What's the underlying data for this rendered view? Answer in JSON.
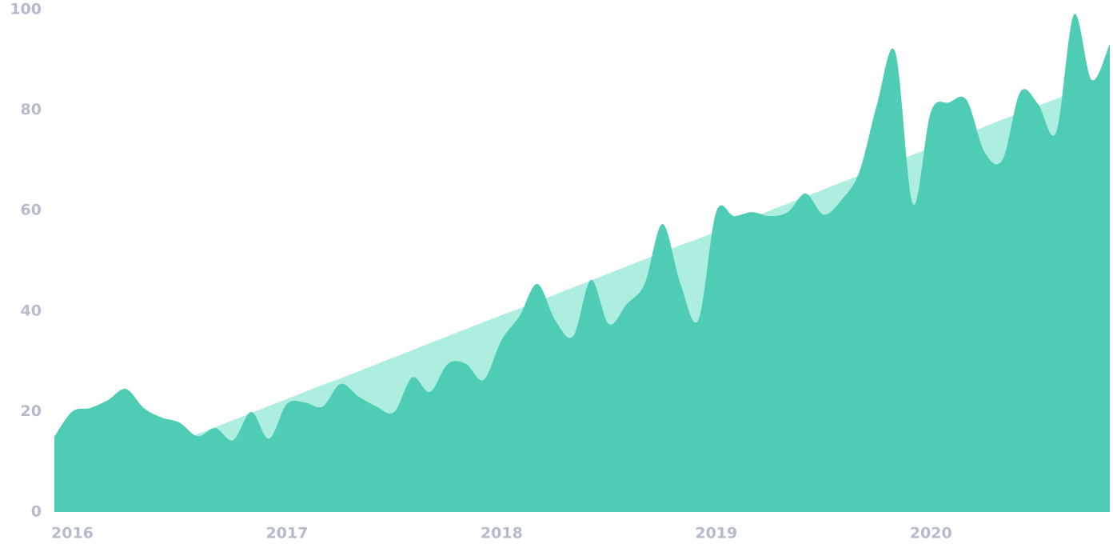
{
  "chart_data": {
    "type": "area",
    "x": [
      2016,
      2016.083,
      2016.167,
      2016.25,
      2016.333,
      2016.417,
      2016.5,
      2016.583,
      2016.667,
      2016.75,
      2016.833,
      2016.917,
      2017,
      2017.083,
      2017.167,
      2017.25,
      2017.333,
      2017.417,
      2017.5,
      2017.583,
      2017.667,
      2017.75,
      2017.833,
      2017.917,
      2018,
      2018.083,
      2018.167,
      2018.25,
      2018.333,
      2018.417,
      2018.5,
      2018.583,
      2018.667,
      2018.75,
      2018.833,
      2018.917,
      2019,
      2019.083,
      2019.167,
      2019.25,
      2019.333,
      2019.417,
      2019.5,
      2019.583,
      2019.667,
      2019.75,
      2019.833,
      2019.917,
      2020,
      2020.083,
      2020.167,
      2020.25,
      2020.333,
      2020.417,
      2020.5,
      2020.583,
      2020.667,
      2020.75,
      2020.833,
      2020.917
    ],
    "series": [
      {
        "color": "#aeeee0",
        "values": [
          4.4,
          5.8,
          7.2,
          8.6,
          10,
          11.4,
          12.7,
          14.1,
          15.5,
          16.9,
          18.3,
          19.7,
          21.1,
          22.5,
          23.9,
          25.3,
          26.6,
          28,
          29.4,
          30.8,
          32.2,
          33.6,
          35,
          36.4,
          37.8,
          39.2,
          40.5,
          41.9,
          43.3,
          44.7,
          46.1,
          47.5,
          48.9,
          50.3,
          51.7,
          53.1,
          54.4,
          55.8,
          57.2,
          58.6,
          60,
          61.4,
          62.8,
          64.2,
          65.6,
          67,
          68.3,
          69.7,
          71.1,
          72.5,
          73.9,
          75.3,
          76.7,
          78.1,
          79.5,
          80.9,
          82.2,
          83.6,
          85,
          86.4
        ]
      },
      {
        "color": "#4ecdb4",
        "values": [
          15,
          20,
          20.7,
          22.3,
          24.5,
          20.7,
          18.8,
          17.8,
          15.1,
          16.7,
          14.3,
          19.9,
          14.6,
          21.5,
          21.8,
          21,
          25.5,
          23,
          21,
          19.9,
          26.8,
          23.9,
          29.5,
          29.5,
          26.3,
          34.2,
          39,
          45.4,
          38.2,
          35,
          46.2,
          37.4,
          41.4,
          45.4,
          57.3,
          45.4,
          38.2,
          59.7,
          58.9,
          59.7,
          58.9,
          59.7,
          63.4,
          59.2,
          62.1,
          67.7,
          81.2,
          91.6,
          61.3,
          79.6,
          81.5,
          82,
          71.7,
          70.1,
          83.6,
          81.2,
          75.6,
          99,
          86,
          93.2
        ]
      }
    ],
    "xlim": [
      2016,
      2020.917
    ],
    "xticks": [
      2016,
      2017,
      2018,
      2019,
      2020
    ],
    "ylim": [
      0,
      100
    ],
    "yticks": [
      0,
      20,
      40,
      60,
      80,
      100
    ],
    "grid": false
  }
}
